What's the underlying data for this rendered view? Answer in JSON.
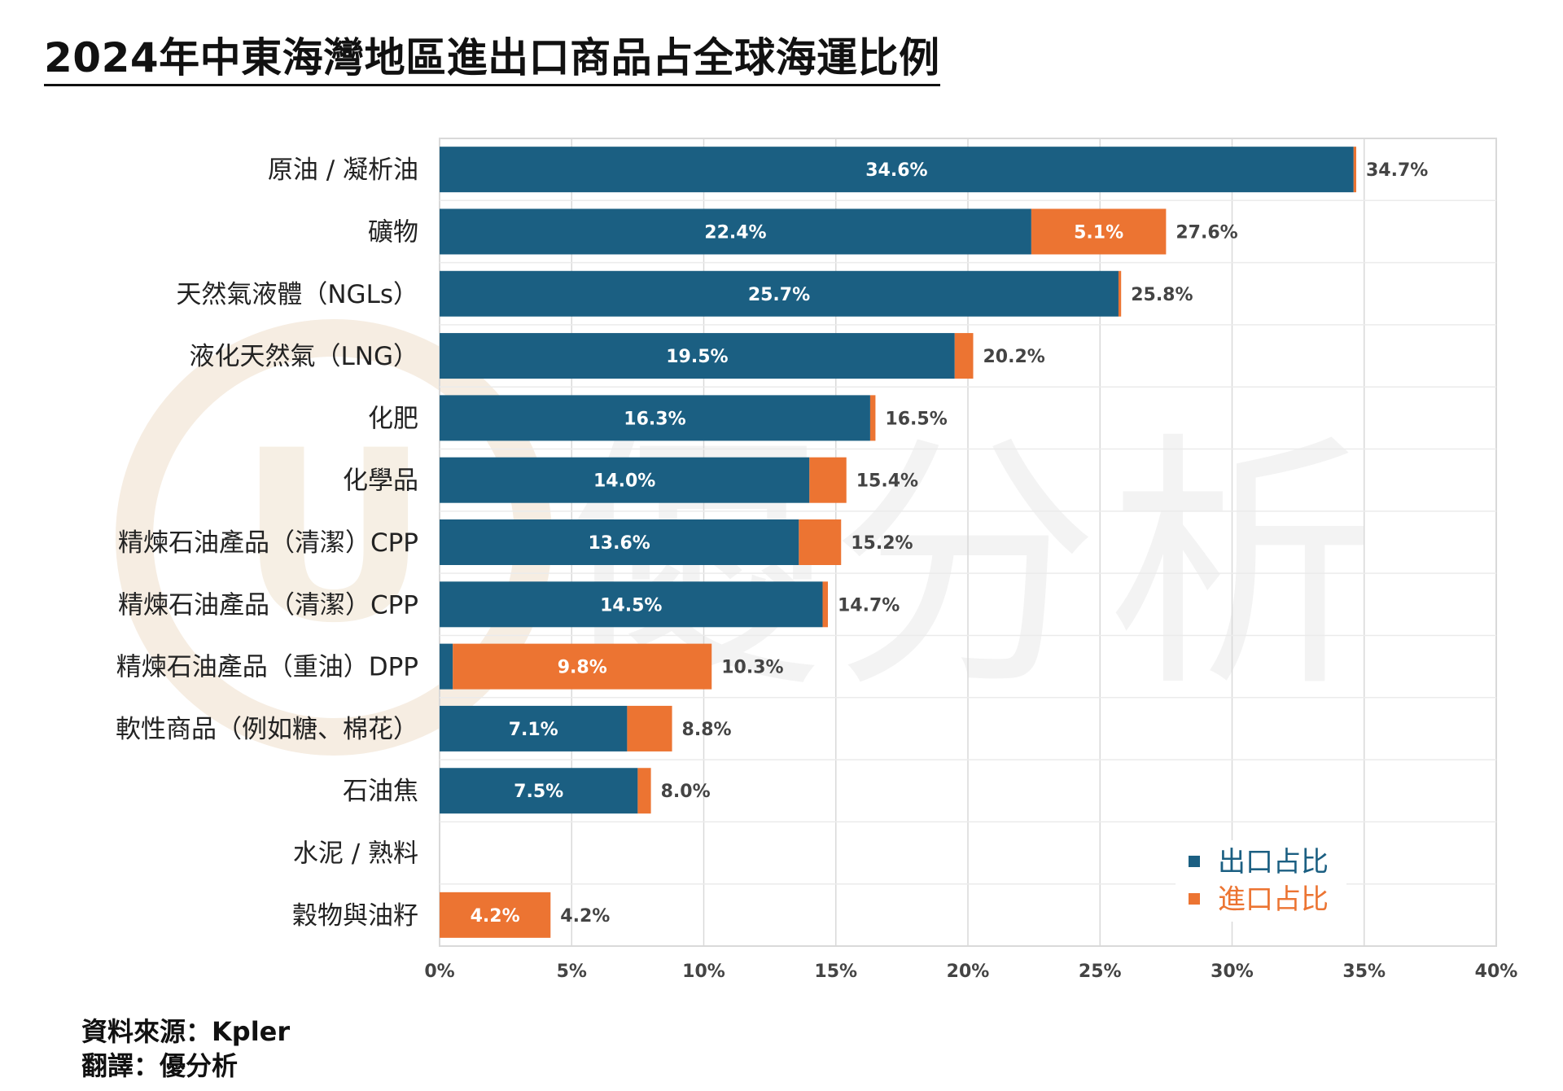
{
  "title": "2024年中東海灣地區進出口商品占全球海運比例",
  "source_lines": [
    "資料來源：Kpler",
    "翻譯：優分析"
  ],
  "watermark": {
    "symbol": "U",
    "text": "優分析"
  },
  "colors": {
    "export": "#1b5f82",
    "import": "#ec7432",
    "grid": "#d9d9d9",
    "axis": "#444444"
  },
  "chart_data": {
    "type": "bar",
    "orientation": "horizontal",
    "stacked": true,
    "categories": [
      "原油 / 凝析油",
      "礦物",
      "天然氣液體（NGLs）",
      "液化天然氣（LNG）",
      "化肥",
      "化學品",
      "精煉石油產品（清潔）CPP",
      "精煉石油產品（清潔）CPP",
      "精煉石油產品（重油）DPP",
      "軟性商品（例如糖、棉花）",
      "石油焦",
      "水泥 / 熟料",
      "穀物與油籽"
    ],
    "series": [
      {
        "name": "出口占比",
        "color": "#1b5f82",
        "values": [
          34.6,
          22.4,
          25.7,
          19.5,
          16.3,
          14.0,
          13.6,
          14.5,
          0.5,
          7.1,
          7.5,
          0.0,
          0.0
        ],
        "labels": [
          "34.6%",
          "22.4%",
          "25.7%",
          "19.5%",
          "16.3%",
          "14.0%",
          "13.6%",
          "14.5%",
          "",
          "7.1%",
          "7.5%",
          "",
          ""
        ]
      },
      {
        "name": "進口占比",
        "color": "#ec7432",
        "values": [
          0.1,
          5.1,
          0.1,
          0.7,
          0.2,
          1.4,
          1.6,
          0.2,
          9.8,
          1.7,
          0.5,
          0.0,
          4.2
        ],
        "labels": [
          "",
          "5.1%",
          "",
          "",
          "",
          "",
          "",
          "",
          "9.8%",
          "",
          "",
          "",
          "4.2%"
        ]
      }
    ],
    "totals": [
      "34.7%",
      "27.6%",
      "25.8%",
      "20.2%",
      "16.5%",
      "15.4%",
      "15.2%",
      "14.7%",
      "10.3%",
      "8.8%",
      "8.0%",
      "",
      "4.2%"
    ],
    "xlim": [
      0,
      40
    ],
    "xticks": [
      0,
      5,
      10,
      15,
      20,
      25,
      30,
      35,
      40
    ],
    "xtick_labels": [
      "0%",
      "5%",
      "10%",
      "15%",
      "20%",
      "25%",
      "30%",
      "35%",
      "40%"
    ],
    "xlabel": "",
    "ylabel": "",
    "grid": true,
    "legend_position": "bottom-right"
  }
}
